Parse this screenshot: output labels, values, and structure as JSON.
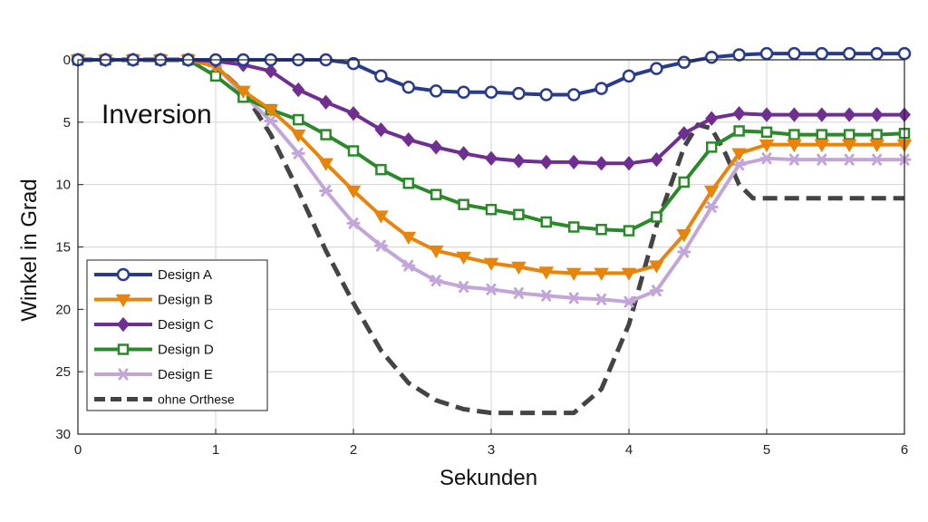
{
  "chart_data": {
    "type": "line",
    "title": "",
    "annotation": "Inversion",
    "xlabel": "Sekunden",
    "ylabel": "Winkel in Grad",
    "xlim": [
      0,
      6
    ],
    "ylim": [
      0,
      30
    ],
    "y_inverted": true,
    "xticks": [
      0,
      1,
      2,
      3,
      4,
      5,
      6
    ],
    "yticks": [
      0,
      5,
      10,
      15,
      20,
      25,
      30
    ],
    "grid": true,
    "legend_position": "lower-left",
    "series": [
      {
        "name": "Design A",
        "color": "#283b8c",
        "marker": "circle",
        "dashed": false,
        "x": [
          0,
          0.2,
          0.4,
          0.6,
          0.8,
          1,
          1.2,
          1.4,
          1.6,
          1.8,
          2,
          2.2,
          2.4,
          2.6,
          2.8,
          3,
          3.2,
          3.4,
          3.6,
          3.8,
          4,
          4.2,
          4.4,
          4.6,
          4.8,
          5,
          5.2,
          5.4,
          5.6,
          5.8,
          6
        ],
        "y": [
          0,
          0,
          0,
          0,
          0,
          0,
          0,
          0,
          0,
          0,
          0.3,
          1.3,
          2.2,
          2.5,
          2.6,
          2.6,
          2.7,
          2.8,
          2.8,
          2.3,
          1.3,
          0.7,
          0.2,
          -0.2,
          -0.4,
          -0.5,
          -0.5,
          -0.5,
          -0.5,
          -0.5,
          -0.5
        ]
      },
      {
        "name": "Design B",
        "color": "#e8840c",
        "marker": "triangle-down",
        "dashed": false,
        "x": [
          0,
          0.2,
          0.4,
          0.6,
          0.8,
          1,
          1.2,
          1.4,
          1.6,
          1.8,
          2,
          2.2,
          2.4,
          2.6,
          2.8,
          3,
          3.2,
          3.4,
          3.6,
          3.8,
          4,
          4.2,
          4.4,
          4.6,
          4.8,
          5,
          5.2,
          5.4,
          5.6,
          5.8,
          6
        ],
        "y": [
          0,
          0,
          0,
          0,
          0,
          0.5,
          2.5,
          4,
          6,
          8.3,
          10.5,
          12.5,
          14.2,
          15.3,
          15.8,
          16.3,
          16.6,
          17,
          17.1,
          17.1,
          17.1,
          16.5,
          14,
          10.5,
          7.5,
          6.8,
          6.8,
          6.8,
          6.8,
          6.8,
          6.8
        ]
      },
      {
        "name": "Design C",
        "color": "#6f2f91",
        "marker": "diamond",
        "dashed": false,
        "x": [
          0,
          0.2,
          0.4,
          0.6,
          0.8,
          1,
          1.2,
          1.4,
          1.6,
          1.8,
          2,
          2.2,
          2.4,
          2.6,
          2.8,
          3,
          3.2,
          3.4,
          3.6,
          3.8,
          4,
          4.2,
          4.4,
          4.6,
          4.8,
          5,
          5.2,
          5.4,
          5.6,
          5.8,
          6
        ],
        "y": [
          0,
          0,
          0,
          0,
          0,
          0.1,
          0.4,
          0.9,
          2.4,
          3.4,
          4.3,
          5.6,
          6.4,
          7.0,
          7.5,
          7.9,
          8.1,
          8.2,
          8.2,
          8.3,
          8.3,
          8.0,
          5.9,
          4.7,
          4.3,
          4.4,
          4.4,
          4.4,
          4.4,
          4.4,
          4.4
        ]
      },
      {
        "name": "Design D",
        "color": "#2a8a2a",
        "marker": "square",
        "dashed": false,
        "x": [
          0,
          0.2,
          0.4,
          0.6,
          0.8,
          1,
          1.2,
          1.4,
          1.6,
          1.8,
          2,
          2.2,
          2.4,
          2.6,
          2.8,
          3,
          3.2,
          3.4,
          3.6,
          3.8,
          4,
          4.2,
          4.4,
          4.6,
          4.8,
          5,
          5.2,
          5.4,
          5.6,
          5.8,
          6
        ],
        "y": [
          0,
          0,
          0,
          0,
          0,
          1.3,
          3.0,
          4.0,
          4.8,
          6.0,
          7.3,
          8.8,
          9.9,
          10.8,
          11.6,
          12.0,
          12.4,
          13.0,
          13.4,
          13.6,
          13.7,
          12.6,
          9.8,
          7.0,
          5.7,
          5.8,
          6.0,
          6.0,
          6.0,
          6.0,
          5.9
        ]
      },
      {
        "name": "Design E",
        "color": "#c3a6d9",
        "marker": "asterisk",
        "dashed": false,
        "x": [
          0,
          0.2,
          0.4,
          0.6,
          0.8,
          1,
          1.2,
          1.4,
          1.6,
          1.8,
          2,
          2.2,
          2.4,
          2.6,
          2.8,
          3,
          3.2,
          3.4,
          3.6,
          3.8,
          4,
          4.2,
          4.4,
          4.6,
          4.8,
          5,
          5.2,
          5.4,
          5.6,
          5.8,
          6
        ],
        "y": [
          0,
          0,
          0,
          0,
          0,
          0.5,
          2.8,
          4.9,
          7.5,
          10.5,
          13.1,
          14.9,
          16.5,
          17.7,
          18.2,
          18.4,
          18.7,
          18.9,
          19.1,
          19.2,
          19.4,
          18.5,
          15.4,
          11.8,
          8.4,
          7.9,
          8.0,
          8.0,
          8.0,
          8.0,
          8.0
        ]
      },
      {
        "name": "ohne Orthese",
        "color": "#444444",
        "marker": "none",
        "dashed": true,
        "x": [
          0,
          0.8,
          1,
          1.2,
          1.4,
          1.6,
          1.8,
          2,
          2.2,
          2.4,
          2.6,
          2.8,
          3,
          3.2,
          3.4,
          3.6,
          3.8,
          4,
          4.2,
          4.4,
          4.5,
          4.6,
          4.7,
          4.8,
          4.9,
          5,
          5.2,
          5.6,
          6
        ],
        "y": [
          0,
          0,
          0.5,
          2.5,
          6,
          10.5,
          15.3,
          19.5,
          23.3,
          25.9,
          27.3,
          28,
          28.3,
          28.3,
          28.3,
          28.3,
          26.4,
          21.2,
          13.3,
          7,
          5.2,
          5.5,
          7.5,
          10,
          11.1,
          11.1,
          11.1,
          11.1,
          11.1
        ]
      }
    ]
  }
}
